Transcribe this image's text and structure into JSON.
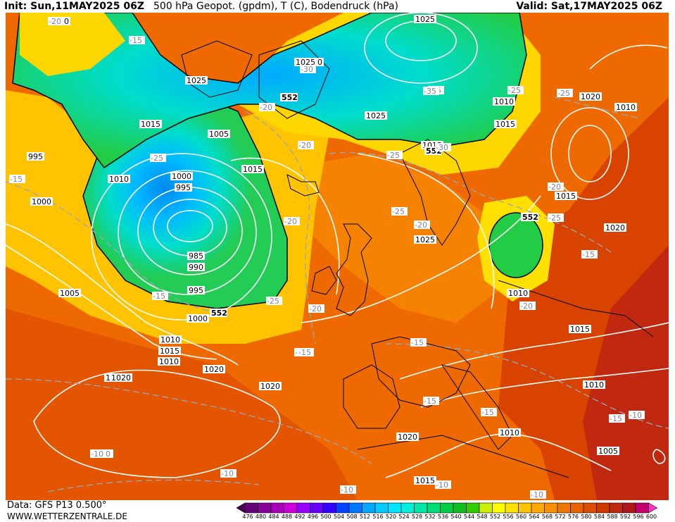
{
  "header": {
    "init": "Init: Sun,11MAY2025 06Z",
    "title": "500 hPa Geopot. (gpdm), T (C), Bodendruck (hPa)",
    "valid": "Valid: Sat,17MAY2025 06Z"
  },
  "footer": {
    "source": "Data: GFS P13 0.500°",
    "website": "WWW.WETTERZENTRALE.DE"
  },
  "map": {
    "pressure_labels": [
      "1000",
      "1025",
      "1020",
      "1025",
      "552",
      "995",
      "1015",
      "1005",
      "1010",
      "1000",
      "995",
      "1015",
      "1000",
      "985",
      "990",
      "995",
      "1000",
      "552",
      "1005",
      "1010",
      "1015",
      "1010",
      "1020",
      "1025",
      "1025",
      "1015",
      "1025",
      "552",
      "1025",
      "1020",
      "1010",
      "1020",
      "1010",
      "1015",
      "1015",
      "552",
      "1020",
      "1020",
      "1015",
      "1010",
      "1010",
      "1005",
      "1020",
      "1015",
      "1010",
      "1020"
    ],
    "temperature_labels": [
      "-20",
      "-15",
      "-30",
      "-25",
      "-35",
      "-25",
      "-25",
      "-20",
      "-15",
      "-25",
      "-20",
      "-20",
      "-30",
      "-25",
      "-25",
      "-20",
      "-20",
      "-25",
      "-15",
      "-15",
      "-25",
      "-20",
      "-15",
      "-15",
      "-15",
      "-15",
      "-15",
      "-10",
      "-10",
      "-10",
      "-10",
      "-10",
      "-10",
      "-20",
      "-15",
      "-10",
      "-15"
    ]
  },
  "scale": {
    "ticks": [
      "476",
      "480",
      "484",
      "488",
      "492",
      "496",
      "500",
      "504",
      "508",
      "512",
      "516",
      "520",
      "524",
      "528",
      "532",
      "536",
      "540",
      "544",
      "548",
      "552",
      "556",
      "560",
      "564",
      "568",
      "572",
      "576",
      "580",
      "584",
      "588",
      "592",
      "596",
      "600"
    ],
    "colors": [
      "#4b0055",
      "#660077",
      "#88009a",
      "#aa00bb",
      "#cc00dd",
      "#9900ff",
      "#6600ff",
      "#3300ff",
      "#0044ff",
      "#0077ff",
      "#00aaff",
      "#00ccff",
      "#00e5ff",
      "#00eedd",
      "#00e8a8",
      "#00dd77",
      "#00cc44",
      "#11bb22",
      "#33cc00",
      "#ccee00",
      "#ffff00",
      "#ffe000",
      "#ffc300",
      "#ffa800",
      "#f89000",
      "#ef7700",
      "#e66300",
      "#dc4f00",
      "#cf3a00",
      "#c02810",
      "#ad1818",
      "#c40070",
      "#ff33cc"
    ]
  }
}
